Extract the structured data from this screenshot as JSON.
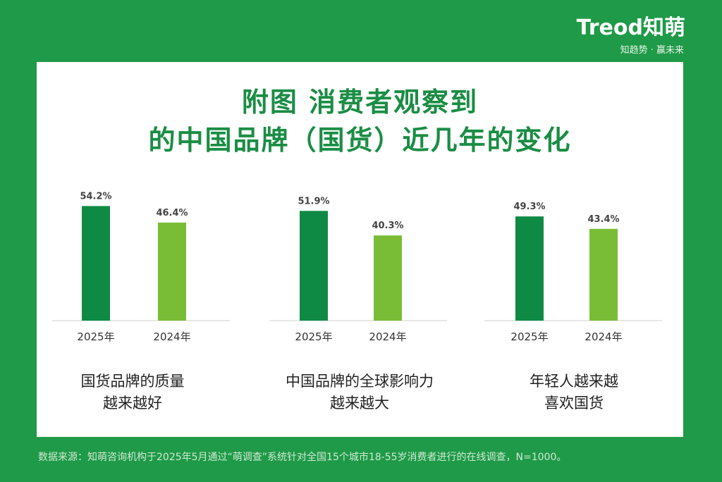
{
  "brand": {
    "logo_text": "Treod知萌",
    "tagline": "知趋势 · 赢未来"
  },
  "title": {
    "line1": "附图  消费者观察到",
    "line2": "的中国品牌（国货）近几年的变化"
  },
  "colors": {
    "background": "#1f9a48",
    "bar_2025": "#0f8a45",
    "bar_2024": "#79bd36",
    "title": "#1a8d44"
  },
  "chart_data": [
    {
      "type": "bar",
      "categories": [
        "2025年",
        "2024年"
      ],
      "values": [
        54.2,
        46.4
      ],
      "value_labels": [
        "54.2%",
        "46.4%"
      ],
      "caption": [
        "国货品牌的质量",
        "越来越好"
      ]
    },
    {
      "type": "bar",
      "categories": [
        "2025年",
        "2024年"
      ],
      "values": [
        51.9,
        40.3
      ],
      "value_labels": [
        "51.9%",
        "40.3%"
      ],
      "caption": [
        "中国品牌的全球影响力",
        "越来越大"
      ]
    },
    {
      "type": "bar",
      "categories": [
        "2025年",
        "2024年"
      ],
      "values": [
        49.3,
        43.4
      ],
      "value_labels": [
        "49.3%",
        "43.4%"
      ],
      "caption": [
        "年轻人越来越",
        "喜欢国货"
      ]
    }
  ],
  "footer": {
    "source": "数据来源：知萌咨询机构于2025年5月通过“萌调查”系统针对全国15个城市18-55岁消费者进行的在线调查，N=1000。"
  }
}
